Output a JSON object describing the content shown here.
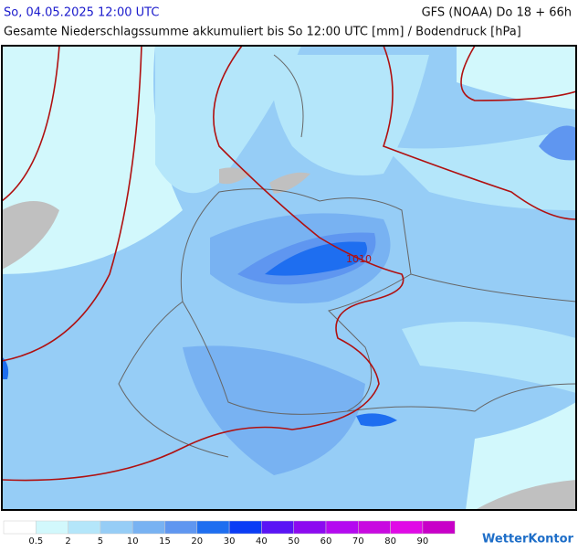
{
  "header": {
    "datetime": "So, 04.05.2025 12:00 UTC",
    "model": "GFS (NOAA) Do 18 + 66h",
    "subtitle": "Gesamte Niederschlagssumme akkumuliert bis So 12:00 UTC [mm] / Bodendruck [hPa]"
  },
  "map": {
    "isobar_label": "1010"
  },
  "legend": {
    "labels": [
      "0.5",
      "2",
      "5",
      "10",
      "15",
      "20",
      "30",
      "40",
      "50",
      "60",
      "70",
      "80",
      "90"
    ],
    "colors": [
      "#ffffff",
      "#d2f8fc",
      "#b4e6fa",
      "#96cdf6",
      "#78b2f2",
      "#5f96f0",
      "#1e6ef0",
      "#0a3cf5",
      "#5a14f5",
      "#8c0af0",
      "#b40af0",
      "#c80ae0",
      "#e00ae6",
      "#c800c8"
    ]
  },
  "brand": "WetterKontor"
}
